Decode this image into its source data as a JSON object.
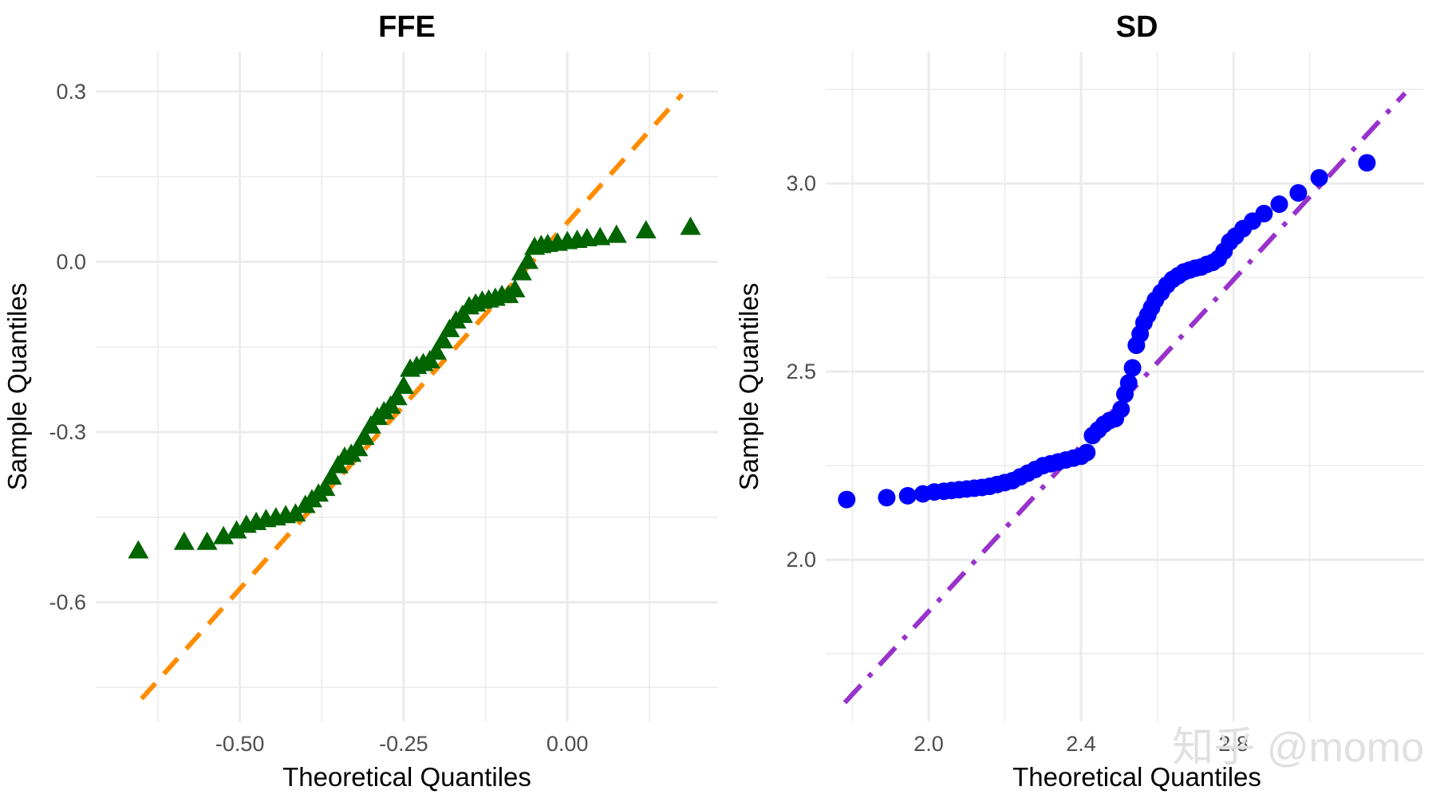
{
  "colors": {
    "panel_1_points": "#006400",
    "panel_1_line": "#FF8C00",
    "panel_2_points": "#0000FF",
    "panel_2_line": "#9932CC",
    "grid": "#ebebeb",
    "tick_text": "#4d4d4d"
  },
  "watermark": {
    "text": "知乎 @momo"
  },
  "chart_data": [
    {
      "type": "scatter",
      "subtype": "qq-plot",
      "title": "FFE",
      "xlabel": "Theoretical Quantiles",
      "ylabel": "Sample Quantiles",
      "xlim": [
        -0.72,
        0.23
      ],
      "ylim": [
        -0.81,
        0.37
      ],
      "xticks": [
        -0.5,
        -0.25,
        0.0
      ],
      "xtick_labels": [
        "-0.50",
        "-0.25",
        "0.00"
      ],
      "yticks": [
        0.3,
        0.0,
        -0.3,
        -0.6
      ],
      "ytick_labels": [
        "0.3",
        "0.0",
        "-0.3",
        "-0.6"
      ],
      "grid": true,
      "marker": "triangle",
      "reference_line": {
        "style": "dashed",
        "x": [
          -0.65,
          0.175
        ],
        "y": [
          -0.77,
          0.295
        ]
      },
      "points": {
        "x": [
          -0.655,
          -0.585,
          -0.55,
          -0.525,
          -0.505,
          -0.49,
          -0.475,
          -0.46,
          -0.445,
          -0.43,
          -0.415,
          -0.4,
          -0.39,
          -0.38,
          -0.37,
          -0.36,
          -0.35,
          -0.34,
          -0.33,
          -0.32,
          -0.31,
          -0.3,
          -0.29,
          -0.28,
          -0.27,
          -0.26,
          -0.25,
          -0.24,
          -0.23,
          -0.22,
          -0.21,
          -0.2,
          -0.19,
          -0.18,
          -0.17,
          -0.16,
          -0.15,
          -0.14,
          -0.13,
          -0.12,
          -0.11,
          -0.1,
          -0.09,
          -0.08,
          -0.07,
          -0.06,
          -0.05,
          -0.04,
          -0.03,
          -0.015,
          0.0,
          0.015,
          0.03,
          0.05,
          0.075,
          0.12,
          0.188
        ],
        "y": [
          -0.51,
          -0.495,
          -0.495,
          -0.485,
          -0.475,
          -0.465,
          -0.46,
          -0.455,
          -0.452,
          -0.448,
          -0.445,
          -0.43,
          -0.42,
          -0.41,
          -0.4,
          -0.38,
          -0.36,
          -0.345,
          -0.34,
          -0.33,
          -0.31,
          -0.29,
          -0.275,
          -0.265,
          -0.255,
          -0.24,
          -0.22,
          -0.19,
          -0.185,
          -0.18,
          -0.175,
          -0.16,
          -0.14,
          -0.12,
          -0.105,
          -0.095,
          -0.08,
          -0.075,
          -0.07,
          -0.068,
          -0.065,
          -0.06,
          -0.06,
          -0.05,
          -0.02,
          0.0,
          0.025,
          0.028,
          0.03,
          0.032,
          0.035,
          0.037,
          0.04,
          0.042,
          0.046,
          0.054,
          0.06
        ]
      }
    },
    {
      "type": "scatter",
      "subtype": "qq-plot",
      "title": "SD",
      "xlabel": "Theoretical Quantiles",
      "ylabel": "Sample Quantiles",
      "xlim": [
        1.73,
        3.3
      ],
      "ylim": [
        1.57,
        3.35
      ],
      "xticks": [
        2.0,
        2.4,
        2.8
      ],
      "xtick_labels": [
        "2.0",
        "2.4",
        "2.8"
      ],
      "yticks": [
        3.0,
        2.5,
        2.0
      ],
      "ytick_labels": [
        "3.0",
        "2.5",
        "2.0"
      ],
      "grid": true,
      "marker": "circle",
      "reference_line": {
        "style": "dotdash",
        "x": [
          1.78,
          3.25
        ],
        "y": [
          1.62,
          3.24
        ]
      },
      "points": {
        "x": [
          1.785,
          1.89,
          1.945,
          1.985,
          2.015,
          2.04,
          2.06,
          2.08,
          2.1,
          2.12,
          2.14,
          2.16,
          2.18,
          2.2,
          2.22,
          2.24,
          2.26,
          2.28,
          2.3,
          2.32,
          2.34,
          2.36,
          2.38,
          2.4,
          2.415,
          2.43,
          2.445,
          2.46,
          2.475,
          2.49,
          2.505,
          2.515,
          2.525,
          2.535,
          2.545,
          2.555,
          2.565,
          2.575,
          2.585,
          2.595,
          2.61,
          2.625,
          2.64,
          2.655,
          2.67,
          2.685,
          2.7,
          2.715,
          2.73,
          2.745,
          2.76,
          2.775,
          2.79,
          2.805,
          2.825,
          2.85,
          2.88,
          2.92,
          2.97,
          3.025,
          3.15
        ],
        "y": [
          2.16,
          2.165,
          2.17,
          2.175,
          2.18,
          2.182,
          2.184,
          2.186,
          2.188,
          2.19,
          2.192,
          2.195,
          2.2,
          2.205,
          2.21,
          2.22,
          2.23,
          2.24,
          2.25,
          2.255,
          2.26,
          2.265,
          2.27,
          2.275,
          2.285,
          2.33,
          2.345,
          2.36,
          2.37,
          2.375,
          2.4,
          2.44,
          2.47,
          2.51,
          2.57,
          2.6,
          2.63,
          2.65,
          2.67,
          2.69,
          2.71,
          2.73,
          2.745,
          2.755,
          2.765,
          2.77,
          2.775,
          2.778,
          2.785,
          2.79,
          2.8,
          2.82,
          2.845,
          2.86,
          2.88,
          2.9,
          2.92,
          2.945,
          2.975,
          3.015,
          3.055
        ]
      }
    }
  ]
}
